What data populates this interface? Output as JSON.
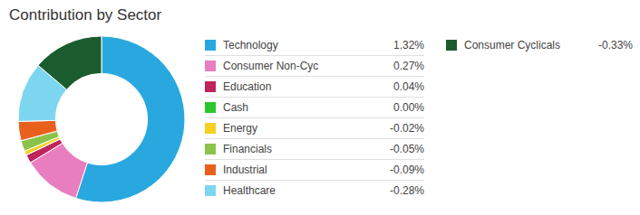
{
  "chart_data": {
    "type": "pie",
    "title": "Contribution by Sector",
    "categories": [
      "Technology",
      "Consumer Non-Cyc",
      "Education",
      "Cash",
      "Energy",
      "Financials",
      "Industrial",
      "Healthcare",
      "Consumer Cyclicals"
    ],
    "values": [
      1.32,
      0.27,
      0.04,
      0.0,
      -0.02,
      -0.05,
      -0.09,
      -0.28,
      -0.33
    ],
    "value_labels": [
      "1.32%",
      "0.27%",
      "0.04%",
      "0.00%",
      "-0.02%",
      "-0.05%",
      "-0.09%",
      "-0.28%",
      "-0.33%"
    ],
    "colors": [
      "#29a8e0",
      "#e87ec0",
      "#c0245c",
      "#2dc52d",
      "#f5d020",
      "#8bc34a",
      "#e8601c",
      "#7dd6f0",
      "#1a5c2e"
    ],
    "data_labels": true,
    "legend": "right"
  }
}
